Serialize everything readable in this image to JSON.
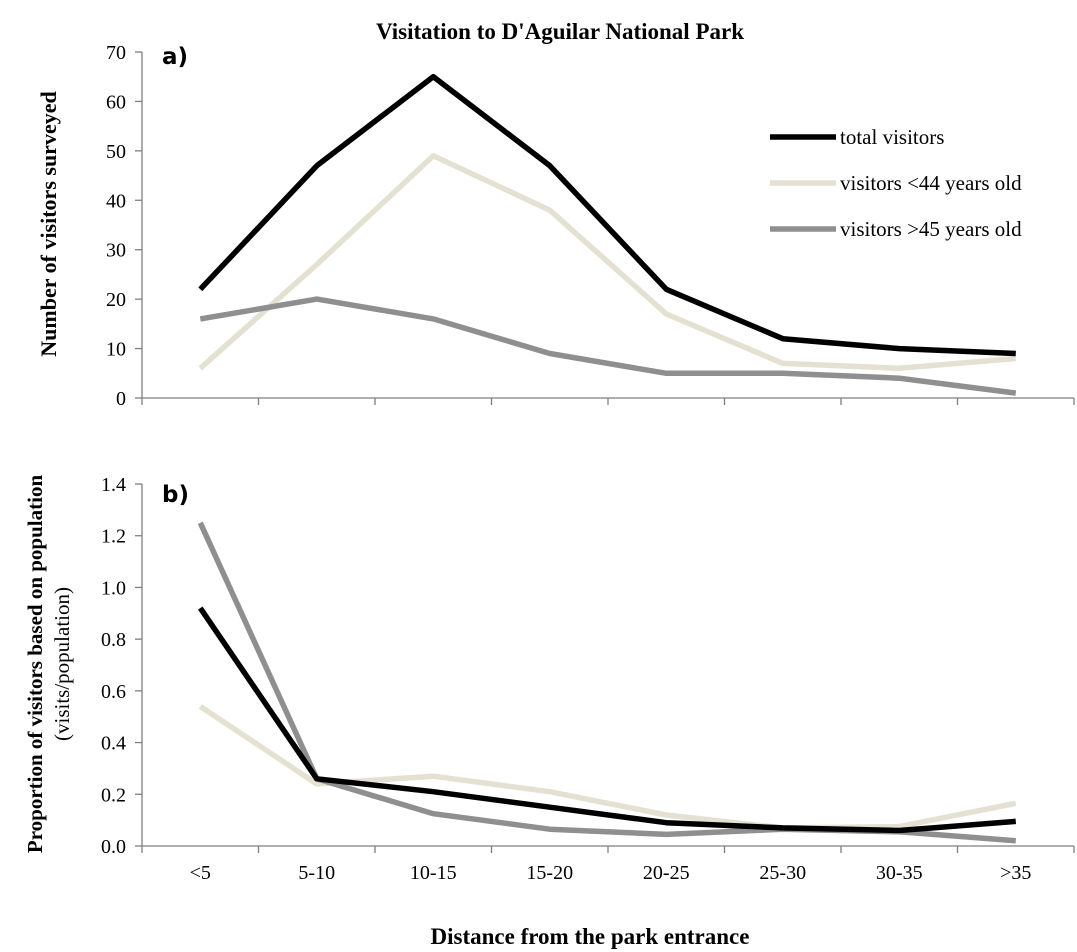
{
  "title": "Visitation to D'Aguilar National Park",
  "xlabel": "Distance from the park entrance",
  "colors": {
    "total": "#000000",
    "young": "#e4e1d2",
    "old": "#8f8f8f",
    "axis": "#7f7f7f"
  },
  "chart_data": [
    {
      "type": "line",
      "panel_label": "a)",
      "ylabel": "Number of visitors surveyed",
      "ylim": [
        0,
        70
      ],
      "yticks": [
        "0",
        "10",
        "20",
        "30",
        "40",
        "50",
        "60",
        "70"
      ],
      "categories": [
        "<5",
        "5-10",
        "10-15",
        "15-20",
        "20-25",
        "25-30",
        "30-35",
        ">35"
      ],
      "legend_position": "top-right",
      "grid": false,
      "series": [
        {
          "name": "total visitors",
          "color_key": "total",
          "values": [
            22,
            47,
            65,
            47,
            22,
            12,
            10,
            9
          ]
        },
        {
          "name": "visitors <44 years old",
          "color_key": "young",
          "values": [
            6,
            27,
            49,
            38,
            17,
            7,
            6,
            8
          ]
        },
        {
          "name": "visitors >45 years old",
          "color_key": "old",
          "values": [
            16,
            20,
            16,
            9,
            5,
            5,
            4,
            1
          ]
        }
      ]
    },
    {
      "type": "line",
      "panel_label": "b)",
      "ylabel_bold": "Proportion of visitors based on population",
      "ylabel_normal": "(visits/population)",
      "ylim": [
        0,
        1.4
      ],
      "yticks": [
        "0.0",
        "0.2",
        "0.4",
        "0.6",
        "0.8",
        "1.0",
        "1.2",
        "1.4"
      ],
      "categories": [
        "<5",
        "5-10",
        "10-15",
        "15-20",
        "20-25",
        "25-30",
        "30-35",
        ">35"
      ],
      "grid": false,
      "series": [
        {
          "name": "total visitors",
          "color_key": "total",
          "values": [
            0.92,
            0.26,
            0.21,
            0.15,
            0.09,
            0.07,
            0.06,
            0.095
          ]
        },
        {
          "name": "visitors <44 years old",
          "color_key": "young",
          "values": [
            0.54,
            0.24,
            0.27,
            0.21,
            0.12,
            0.07,
            0.075,
            0.165
          ]
        },
        {
          "name": "visitors >45 years old",
          "color_key": "old",
          "values": [
            1.25,
            0.26,
            0.125,
            0.065,
            0.045,
            0.065,
            0.055,
            0.02
          ]
        }
      ]
    }
  ]
}
